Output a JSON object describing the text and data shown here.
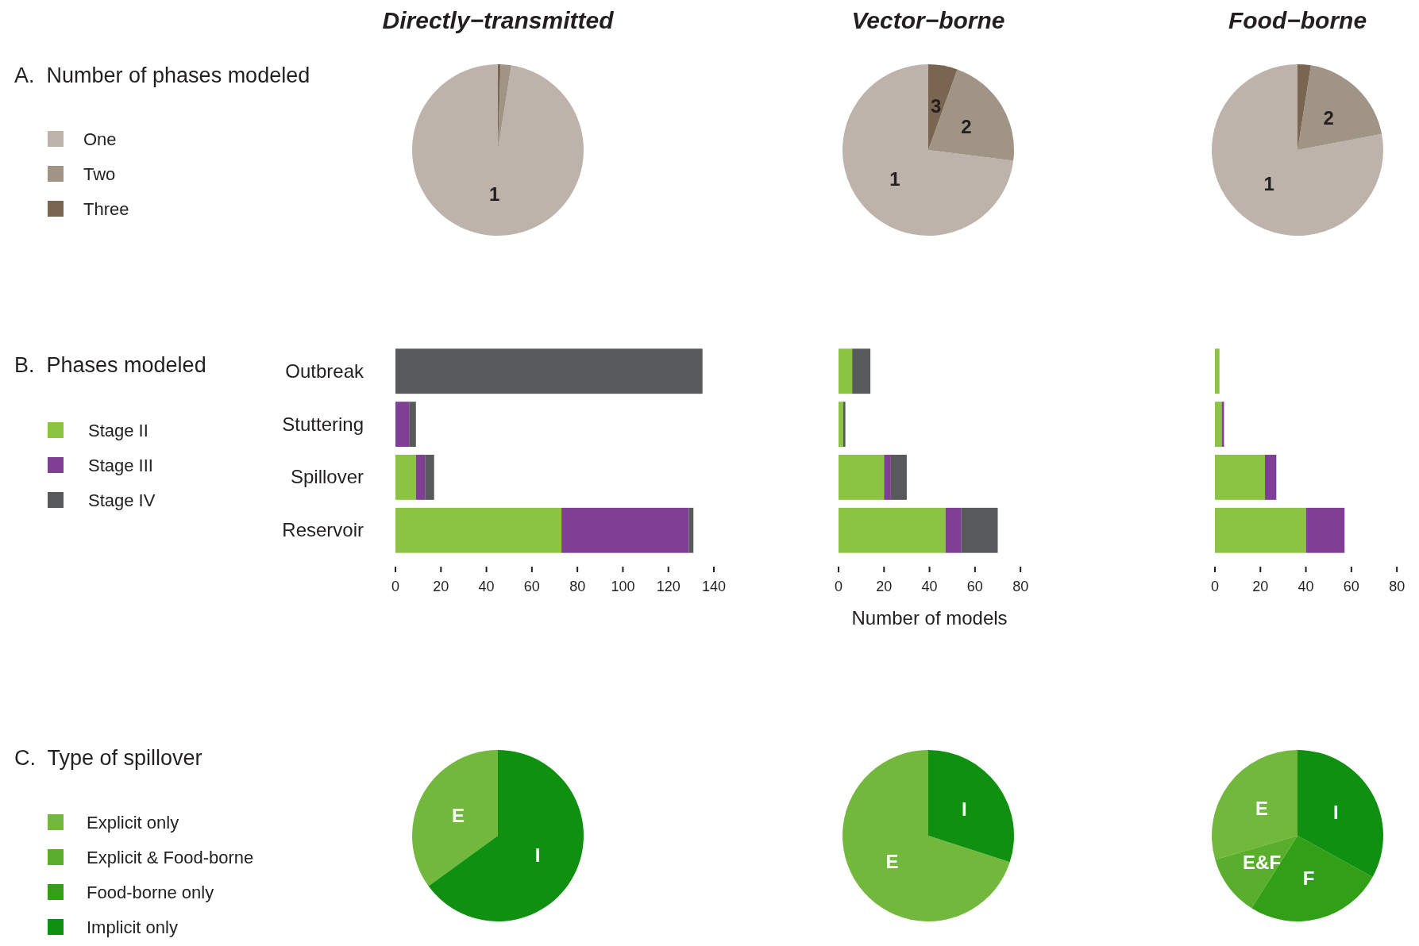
{
  "chart_data": [
    {
      "type": "pie",
      "title": "Directly−transmitted",
      "subtitle": "A.  Number of phases modeled",
      "categories": [
        "One",
        "Two",
        "Three"
      ],
      "values": [
        97.5,
        2,
        0.5
      ],
      "colors": [
        "#bdb3aa",
        "#a09486",
        "#7a6650"
      ],
      "annotations": [
        {
          "text": "1",
          "x": "One"
        }
      ],
      "legend": "left"
    },
    {
      "type": "pie",
      "title": "Vector−borne",
      "categories": [
        "1",
        "2",
        "3"
      ],
      "values": [
        73,
        21.5,
        5.5
      ],
      "colors": [
        "#bdb3aa",
        "#a09486",
        "#7a6650"
      ]
    },
    {
      "type": "pie",
      "title": "Food−borne",
      "categories": [
        "1",
        "2",
        null
      ],
      "values": [
        78,
        19.5,
        2.5
      ],
      "colors": [
        "#bdb3aa",
        "#a09486",
        "#7a6650"
      ]
    },
    {
      "type": "bar",
      "orientation": "horizontal",
      "stacked": true,
      "subtitle": "B.  Phases modeled",
      "categories": [
        "Outbreak",
        "Stuttering",
        "Spillover",
        "Reservoir"
      ],
      "legend": "left",
      "xlim": [
        0,
        140
      ],
      "xticks": [
        0,
        20,
        40,
        60,
        80,
        100,
        120,
        140
      ],
      "series": [
        {
          "name": "Stage II",
          "color": "#8bc441",
          "values": [
            0,
            0,
            9,
            73
          ]
        },
        {
          "name": "Stage III",
          "color": "#7e3f94",
          "values": [
            0,
            6,
            4,
            56
          ]
        },
        {
          "name": "Stage IV",
          "color": "#58595b",
          "values": [
            135,
            3,
            4,
            2
          ]
        }
      ]
    },
    {
      "type": "bar",
      "orientation": "horizontal",
      "stacked": true,
      "xlabel": "Number of models",
      "categories": [
        null,
        null,
        null,
        null
      ],
      "tick_labels": "x",
      "xlim": [
        0,
        80
      ],
      "xticks": [
        0,
        20,
        40,
        60,
        80
      ],
      "series": [
        {
          "color": "#8bc441",
          "values": [
            6,
            2,
            20,
            47
          ]
        },
        {
          "color": "#7e3f94",
          "values": [
            0,
            0,
            3,
            7
          ]
        },
        {
          "color": "#58595b",
          "values": [
            8,
            1,
            7,
            16
          ]
        }
      ]
    },
    {
      "type": "bar",
      "orientation": "horizontal",
      "stacked": true,
      "categories": [
        null,
        null,
        null,
        null
      ],
      "tick_labels": "x",
      "xlim": [
        0,
        80
      ],
      "xticks": [
        0,
        20,
        40,
        60,
        80
      ],
      "series": [
        {
          "color": "#8bc441",
          "values": [
            2,
            3,
            22,
            40
          ]
        },
        {
          "color": "#7e3f94",
          "values": [
            0,
            1,
            5,
            17
          ]
        },
        {
          "color": "#58595b",
          "values": [
            0,
            0,
            0,
            0
          ]
        }
      ]
    },
    {
      "type": "pie",
      "subtitle": "C.  Type of spillover",
      "categories": [
        "Explicit only",
        "Explicit & Food-borne",
        "Food-borne only",
        "Implicit only"
      ],
      "values": [
        35,
        0,
        0,
        65
      ],
      "colors": [
        "#72b83c",
        "#5aae2e",
        "#32a016",
        "#0f9010"
      ],
      "annotations": [
        {
          "text": "E",
          "x": "Explicit only"
        },
        {
          "text": "I",
          "x": "Implicit only"
        }
      ],
      "legend": "left"
    },
    {
      "type": "pie",
      "categories": [
        "E",
        null,
        null,
        "I"
      ],
      "values": [
        70,
        0,
        0,
        30
      ],
      "colors": [
        "#72b83c",
        "#5aae2e",
        "#32a016",
        "#0f9010"
      ]
    },
    {
      "type": "pie",
      "categories": [
        "E",
        "E&F",
        "F",
        "I"
      ],
      "values": [
        29.5,
        11.5,
        26,
        33
      ],
      "colors": [
        "#72b83c",
        "#5aae2e",
        "#32a016",
        "#0f9010"
      ]
    }
  ]
}
